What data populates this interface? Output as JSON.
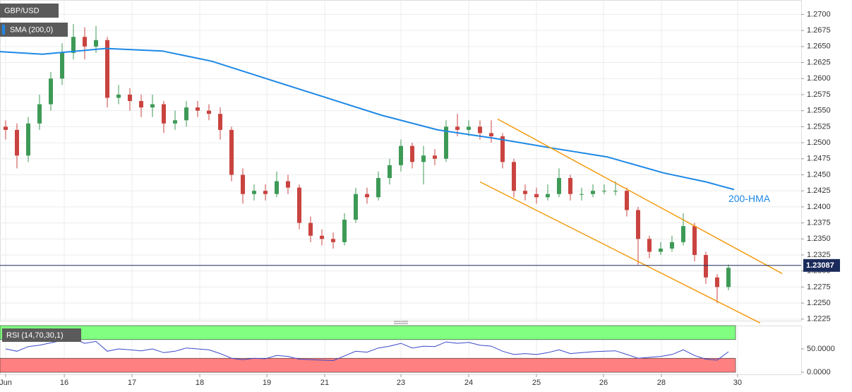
{
  "chart_data": [
    {
      "type": "candlestick",
      "title": "GBP/USD",
      "up_color": "#3d9a56",
      "down_color": "#c9433f",
      "open": [
        1.2525,
        1.252,
        1.248,
        1.253,
        1.256,
        1.26,
        1.264,
        1.2665,
        1.265,
        1.266,
        1.257,
        1.2575,
        1.2565,
        1.2555,
        1.256,
        1.253,
        1.2535,
        1.2555,
        1.255,
        1.2545,
        1.252,
        1.245,
        1.242,
        1.2425,
        1.242,
        1.244,
        1.243,
        1.2375,
        1.2355,
        1.235,
        1.2345,
        1.238,
        1.242,
        1.2415,
        1.2445,
        1.2465,
        1.2495,
        1.247,
        1.248,
        1.2475,
        1.2525,
        1.252,
        1.2525,
        1.2515,
        1.251,
        1.247,
        1.2425,
        1.242,
        1.2415,
        1.242,
        1.2445,
        1.242,
        1.242,
        1.2425,
        1.2425,
        1.2425,
        1.2395,
        1.235,
        1.233,
        1.2335,
        1.2345,
        1.237,
        1.2325,
        1.229,
        1.2275
      ],
      "high": [
        1.2535,
        1.253,
        1.254,
        1.2575,
        1.261,
        1.2655,
        1.2685,
        1.268,
        1.2682,
        1.2665,
        1.259,
        1.2585,
        1.2575,
        1.2575,
        1.2565,
        1.255,
        1.2565,
        1.2565,
        1.256,
        1.2555,
        1.2525,
        1.246,
        1.2435,
        1.2435,
        1.2455,
        1.245,
        1.2435,
        1.2385,
        1.2365,
        1.236,
        1.239,
        1.243,
        1.243,
        1.2455,
        1.2475,
        1.2505,
        1.25,
        1.2495,
        1.249,
        1.2535,
        1.2545,
        1.2535,
        1.2535,
        1.2535,
        1.2515,
        1.2475,
        1.2435,
        1.243,
        1.2435,
        1.246,
        1.245,
        1.243,
        1.2435,
        1.2435,
        1.244,
        1.243,
        1.24,
        1.2355,
        1.2345,
        1.2355,
        1.239,
        1.2375,
        1.233,
        1.2295,
        1.231
      ],
      "low": [
        1.2505,
        1.246,
        1.247,
        1.252,
        1.255,
        1.259,
        1.263,
        1.263,
        1.264,
        1.2555,
        1.256,
        1.255,
        1.254,
        1.254,
        1.2515,
        1.252,
        1.2525,
        1.254,
        1.2535,
        1.2505,
        1.244,
        1.2405,
        1.241,
        1.241,
        1.2415,
        1.242,
        1.2365,
        1.2345,
        1.234,
        1.2335,
        1.234,
        1.2375,
        1.2405,
        1.241,
        1.2435,
        1.2455,
        1.246,
        1.2435,
        1.2465,
        1.247,
        1.251,
        1.251,
        1.2505,
        1.25,
        1.246,
        1.2415,
        1.241,
        1.2405,
        1.241,
        1.2415,
        1.241,
        1.241,
        1.2415,
        1.242,
        1.2418,
        1.2385,
        1.231,
        1.232,
        1.2325,
        1.233,
        1.234,
        1.2315,
        1.228,
        1.225,
        1.227
      ],
      "close": [
        1.252,
        1.248,
        1.253,
        1.256,
        1.26,
        1.264,
        1.2665,
        1.265,
        1.266,
        1.257,
        1.2575,
        1.2565,
        1.2555,
        1.256,
        1.253,
        1.2535,
        1.2555,
        1.255,
        1.2545,
        1.252,
        1.245,
        1.242,
        1.2425,
        1.242,
        1.244,
        1.243,
        1.2375,
        1.2355,
        1.235,
        1.2345,
        1.238,
        1.242,
        1.2415,
        1.2445,
        1.2465,
        1.2495,
        1.247,
        1.248,
        1.2475,
        1.2525,
        1.252,
        1.2525,
        1.2515,
        1.251,
        1.247,
        1.2425,
        1.242,
        1.2415,
        1.242,
        1.2445,
        1.242,
        1.242,
        1.2425,
        1.2425,
        1.2425,
        1.2395,
        1.235,
        1.233,
        1.2335,
        1.2345,
        1.237,
        1.2325,
        1.229,
        1.2275,
        1.2305
      ],
      "series": [
        {
          "name": "SMA (200,0)",
          "color": "#1e88e5",
          "x": [
            0,
            3.75,
            9.375,
            14.375,
            18.75,
            23.75,
            28.75,
            33.75,
            38.75,
            43.75,
            48.75,
            53.75,
            58.75,
            62.5,
            65
          ],
          "values": [
            1.2642,
            1.2638,
            1.2647,
            1.2643,
            1.2627,
            1.2599,
            1.2571,
            1.2543,
            1.252,
            1.2507,
            1.2492,
            1.2478,
            1.2453,
            1.2439,
            1.2427
          ]
        }
      ],
      "annotation": "200-HMA",
      "channel": {
        "color": "#f39c12",
        "lines": [
          {
            "x": [
              44.06,
              69.25
            ],
            "y": [
              1.2537,
              1.2296
            ]
          },
          {
            "x": [
              42.5,
              67.31
            ],
            "y": [
              1.2439,
              1.2219
            ]
          }
        ]
      },
      "last_price": 1.23087,
      "xlim": [
        0,
        70.94
      ],
      "ylim": [
        1.22215,
        1.27225
      ],
      "grid": true,
      "yticks": [
        {
          "value": 1.2225,
          "label": "1.2225"
        },
        {
          "value": 1.225,
          "label": "1.2250"
        },
        {
          "value": 1.2275,
          "label": "1.2275"
        },
        {
          "value": 1.23,
          "label": "1.2300"
        },
        {
          "value": 1.2325,
          "label": "1.2325"
        },
        {
          "value": 1.235,
          "label": "1.2350"
        },
        {
          "value": 1.2375,
          "label": "1.2375"
        },
        {
          "value": 1.24,
          "label": "1.2400"
        },
        {
          "value": 1.2425,
          "label": "1.2425"
        },
        {
          "value": 1.245,
          "label": "1.2450"
        },
        {
          "value": 1.2475,
          "label": "1.2475"
        },
        {
          "value": 1.25,
          "label": "1.2500"
        },
        {
          "value": 1.2525,
          "label": "1.2525"
        },
        {
          "value": 1.255,
          "label": "1.2550"
        },
        {
          "value": 1.2575,
          "label": "1.2575"
        },
        {
          "value": 1.26,
          "label": "1.2600"
        },
        {
          "value": 1.2625,
          "label": "1.2625"
        },
        {
          "value": 1.265,
          "label": "1.2650"
        },
        {
          "value": 1.2675,
          "label": "1.2675"
        },
        {
          "value": 1.27,
          "label": "1.2700"
        }
      ],
      "xticks": [
        {
          "value": 0.5,
          "label": "Jun"
        },
        {
          "value": 5.69,
          "label": "16"
        },
        {
          "value": 11.69,
          "label": "17"
        },
        {
          "value": 17.69,
          "label": "18"
        },
        {
          "value": 23.63,
          "label": "19"
        },
        {
          "value": 28.75,
          "label": "21"
        },
        {
          "value": 35.5,
          "label": "23"
        },
        {
          "value": 41.5,
          "label": "24"
        },
        {
          "value": 47.5,
          "label": "25"
        },
        {
          "value": 53.44,
          "label": "26"
        },
        {
          "value": 58.56,
          "label": "28"
        },
        {
          "value": 65.31,
          "label": "30"
        }
      ]
    },
    {
      "type": "line",
      "title": "RSI (14,70,30,1)",
      "color": "#3a48c8",
      "values": [
        50,
        45,
        55,
        58,
        63,
        68,
        72,
        62,
        66,
        45,
        50,
        48,
        46,
        50,
        42,
        45,
        52,
        50,
        48,
        40,
        30,
        27,
        30,
        29,
        36,
        34,
        28,
        27,
        26,
        25,
        35,
        45,
        43,
        52,
        56,
        62,
        52,
        56,
        55,
        65,
        62,
        64,
        58,
        56,
        45,
        38,
        40,
        38,
        42,
        48,
        40,
        42,
        44,
        45,
        46,
        38,
        30,
        32,
        34,
        38,
        48,
        36,
        28,
        26,
        44
      ],
      "bands": [
        {
          "range": [
            70,
            100
          ],
          "color": "#80ff80"
        },
        {
          "range": [
            0,
            30
          ],
          "color": "#ff8080"
        }
      ],
      "ylim": [
        -4.5,
        100
      ],
      "yticks": [
        {
          "value": 50,
          "label": "50.0000"
        },
        {
          "value": 0,
          "label": "0.0000"
        }
      ]
    }
  ]
}
